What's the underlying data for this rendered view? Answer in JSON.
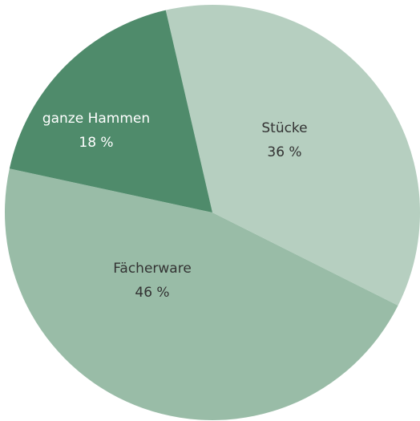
{
  "chart_data": {
    "type": "pie",
    "categories": [
      "Stücke",
      "Fächerware",
      "ganze Hammen"
    ],
    "values": [
      36,
      46,
      18
    ],
    "value_labels": [
      "36 %",
      "46 %",
      "18 %"
    ],
    "colors": [
      "#b6cfc0",
      "#99bca7",
      "#4f8b6b"
    ]
  }
}
